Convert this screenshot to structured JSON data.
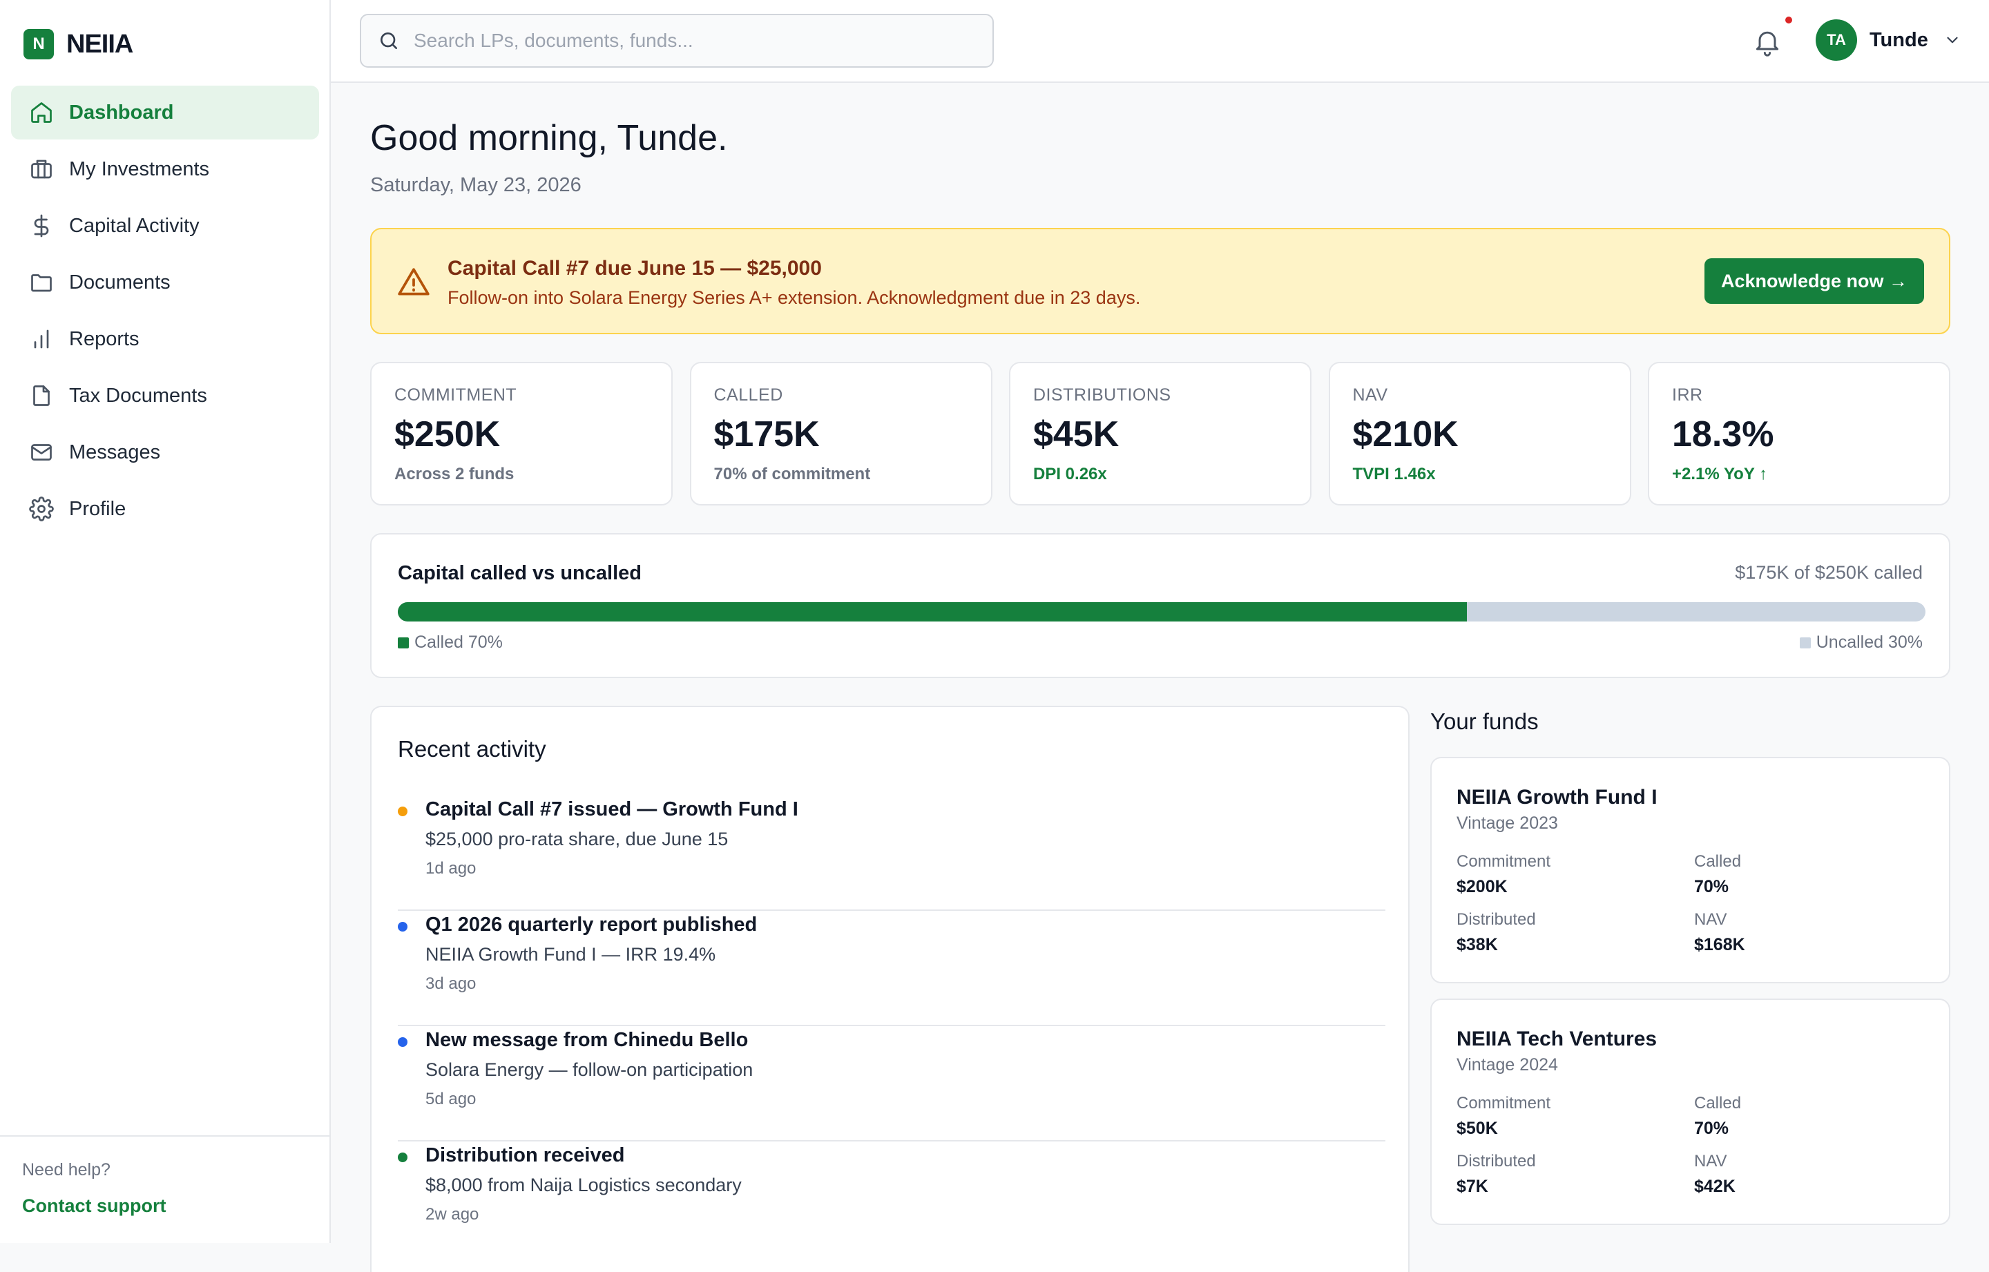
{
  "brand": {
    "logo_letter": "N",
    "name": "NEIIA",
    "accent": "#15803d"
  },
  "sidebar": {
    "items": [
      {
        "label": "Dashboard",
        "icon": "home-icon",
        "active": true
      },
      {
        "label": "My Investments",
        "icon": "briefcase-icon"
      },
      {
        "label": "Capital Activity",
        "icon": "dollar-icon"
      },
      {
        "label": "Documents",
        "icon": "folder-icon"
      },
      {
        "label": "Reports",
        "icon": "bar-chart-icon"
      },
      {
        "label": "Tax Documents",
        "icon": "file-icon"
      },
      {
        "label": "Messages",
        "icon": "mail-icon"
      },
      {
        "label": "Profile",
        "icon": "gear-icon"
      }
    ],
    "help_text": "Need help?",
    "help_link": "Contact support"
  },
  "topbar": {
    "search_placeholder": "Search LPs, documents, funds...",
    "user_initials": "TA",
    "user_name": "Tunde"
  },
  "main": {
    "greeting": "Good morning, Tunde.",
    "date": "Saturday, May 23, 2026",
    "alert": {
      "title": "Capital Call #7 due June 15 — $25,000",
      "text": "Follow-on into Solara Energy Series A+ extension. Acknowledgment due in 23 days.",
      "button": "Acknowledge now →"
    },
    "kpis": [
      {
        "label": "COMMITMENT",
        "value": "$250K",
        "sub": "Across 2 funds"
      },
      {
        "label": "CALLED",
        "value": "$175K",
        "sub": "70% of commitment"
      },
      {
        "label": "DISTRIBUTIONS",
        "value": "$45K",
        "sub": "DPI 0.26x"
      },
      {
        "label": "NAV",
        "value": "$210K",
        "sub": "TVPI 1.46x"
      },
      {
        "label": "IRR",
        "value": "18.3%",
        "sub": "+2.1% YoY ↑"
      }
    ],
    "capital": {
      "title": "Capital called vs uncalled",
      "summary": "$175K of $250K called",
      "called_fraction": 0.7,
      "called_label": "Called 70%",
      "uncalled_label": "Uncalled 30%"
    },
    "activity": {
      "title": "Recent activity",
      "items": [
        {
          "title": "Capital Call #7 issued — Growth Fund I",
          "desc": "$25,000 pro-rata share, due June 15",
          "time": "1d ago",
          "color": "#f59e0b"
        },
        {
          "title": "Q1 2026 quarterly report published",
          "desc": "NEIIA Growth Fund I — IRR 19.4%",
          "time": "3d ago",
          "color": "#2563eb"
        },
        {
          "title": "New message from Chinedu Bello",
          "desc": "Solara Energy — follow-on participation",
          "time": "5d ago",
          "color": "#2563eb"
        },
        {
          "title": "Distribution received",
          "desc": "$8,000 from Naija Logistics secondary",
          "time": "2w ago",
          "color": "#15803d"
        }
      ]
    },
    "funds": {
      "title": "Your funds",
      "items": [
        {
          "name": "NEIIA Growth Fund I",
          "vintage": "Vintage 2023",
          "commitment_label": "Commitment",
          "commitment": "$200K",
          "called_label": "Called",
          "called": "70%",
          "distributed_label": "Distributed",
          "distributed": "$38K",
          "nav_label": "NAV",
          "nav": "$168K"
        },
        {
          "name": "NEIIA Tech Ventures",
          "vintage": "Vintage 2024",
          "commitment_label": "Commitment",
          "commitment": "$50K",
          "called_label": "Called",
          "called": "70%",
          "distributed_label": "Distributed",
          "distributed": "$7K",
          "nav_label": "NAV",
          "nav": "$42K"
        }
      ]
    }
  }
}
